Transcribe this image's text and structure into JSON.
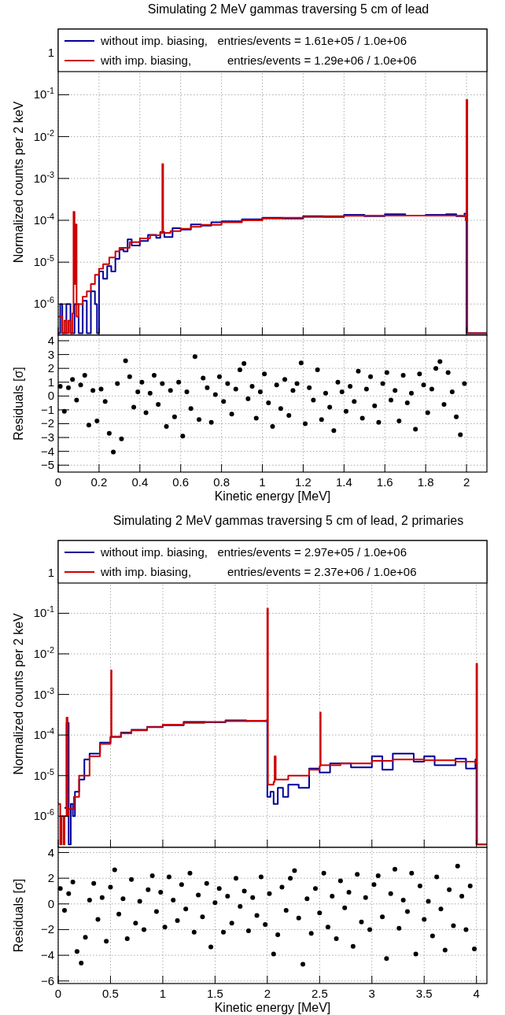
{
  "chart_data": [
    {
      "type": "step",
      "title": "Simulating 2 MeV gammas traversing 5 cm of lead",
      "ylabel": "Normalized counts per 2 keV",
      "log": "y",
      "grid": true,
      "legend": "top",
      "tick_labels": "y",
      "xlim": [
        0,
        2.1
      ],
      "xticks": [
        0,
        0.2,
        0.4,
        0.6,
        0.8,
        1,
        1.2,
        1.4,
        1.6,
        1.8,
        2
      ],
      "ylim": [
        1.8e-07,
        3.7
      ],
      "yticks": [
        {
          "value": 1e-06,
          "label": "10$^{-6}$"
        },
        {
          "value": 1e-05,
          "label": "10$^{-5}$"
        },
        {
          "value": 0.0001,
          "label": "10$^{-4}$"
        },
        {
          "value": 0.001,
          "label": "10$^{-3}$"
        },
        {
          "value": 0.01,
          "label": "10$^{-2}$"
        },
        {
          "value": 0.1,
          "label": "10$^{-1}$"
        },
        1
      ],
      "series": [
        {
          "name": "without imp. biasing,   entries/events = 1.61e+05 / 1.0e+06",
          "color": "#000099",
          "x": [
            0,
            0.01,
            0.02,
            0.04,
            0.06,
            0.08,
            0.1,
            0.12,
            0.14,
            0.16,
            0.18,
            0.19,
            0.2,
            0.22,
            0.24,
            0.26,
            0.28,
            0.3,
            0.32,
            0.34,
            0.36,
            0.4,
            0.44,
            0.48,
            0.5,
            0.52,
            0.56,
            0.6,
            0.65,
            0.7,
            0.75,
            0.8,
            0.9,
            1.0,
            1.1,
            1.2,
            1.3,
            1.4,
            1.5,
            1.6,
            1.7,
            1.8,
            1.9,
            1.95,
            1.99,
            2.0,
            2.1
          ],
          "values": [
            2e-07,
            1e-06,
            2e-07,
            1e-06,
            2e-07,
            1e-06,
            2e-07,
            1.2e-06,
            2e-07,
            2e-06,
            1e-06,
            2e-07,
            6e-06,
            4e-06,
            8e-06,
            6e-06,
            1.2e-05,
            2e-05,
            1.8e-05,
            3.5e-05,
            2.5e-05,
            3.2e-05,
            4.5e-05,
            3.8e-05,
            5.2e-05,
            4e-05,
            6.5e-05,
            6e-05,
            8e-05,
            7.5e-05,
            9e-05,
            9.5e-05,
            0.000105,
            0.000115,
            0.00011,
            0.000125,
            0.00012,
            0.000135,
            0.000125,
            0.00014,
            0.00013,
            0.000135,
            0.00014,
            0.000125,
            0.000145,
            2e-07,
            2e-07
          ]
        },
        {
          "name": "with imp. biasing,           entries/events = 1.29e+06 / 1.0e+06",
          "color": "#cc0000",
          "x": [
            0,
            0.02,
            0.03,
            0.04,
            0.05,
            0.06,
            0.07,
            0.075,
            0.08,
            0.085,
            0.09,
            0.1,
            0.12,
            0.14,
            0.16,
            0.18,
            0.2,
            0.22,
            0.25,
            0.28,
            0.3,
            0.35,
            0.4,
            0.45,
            0.5,
            0.51,
            0.514,
            0.55,
            0.6,
            0.65,
            0.7,
            0.8,
            0.9,
            1.0,
            1.1,
            1.2,
            1.3,
            1.4,
            1.5,
            1.6,
            1.7,
            1.8,
            1.9,
            1.98,
            1.996,
            2.0,
            2.004,
            2.1
          ],
          "values": [
            5e-07,
            2e-07,
            4e-07,
            2e-07,
            4e-07,
            2e-07,
            6e-07,
            0.00016,
            3e-06,
            8e-05,
            5e-07,
            1e-06,
            1.5e-06,
            2e-06,
            3e-06,
            5e-06,
            7e-06,
            9e-06,
            1.3e-05,
            1.8e-05,
            2.2e-05,
            3e-05,
            3.7e-05,
            4.4e-05,
            5e-05,
            0.0022,
            5e-05,
            5.5e-05,
            6.3e-05,
            7e-05,
            7.8e-05,
            9e-05,
            0.0001,
            0.00011,
            0.000115,
            0.00012,
            0.000125,
            0.000128,
            0.00013,
            0.00013,
            0.00013,
            0.00013,
            0.00013,
            0.000125,
            0.0001,
            0.075,
            2e-07,
            2e-07
          ]
        }
      ]
    },
    {
      "type": "scatter",
      "xlabel": "Kinetic energy [MeV]",
      "ylabel": "Residuals [σ]",
      "grid": true,
      "marker": "circle",
      "xlim": [
        0,
        2.1
      ],
      "xticks": [
        0,
        0.2,
        0.4,
        0.6,
        0.8,
        1,
        1.2,
        1.4,
        1.6,
        1.8,
        2
      ],
      "ylim": [
        -5.5,
        4.4
      ],
      "yticks": [
        -5,
        -4,
        -3,
        -2,
        -1,
        0,
        1,
        2,
        3,
        4
      ],
      "series": [
        {
          "color": "#000000",
          "x": [
            0.01,
            0.03,
            0.05,
            0.07,
            0.09,
            0.11,
            0.13,
            0.15,
            0.17,
            0.19,
            0.21,
            0.23,
            0.25,
            0.27,
            0.29,
            0.31,
            0.33,
            0.35,
            0.37,
            0.39,
            0.41,
            0.43,
            0.45,
            0.47,
            0.49,
            0.51,
            0.53,
            0.55,
            0.57,
            0.59,
            0.61,
            0.63,
            0.65,
            0.67,
            0.69,
            0.71,
            0.73,
            0.75,
            0.77,
            0.79,
            0.81,
            0.83,
            0.85,
            0.87,
            0.89,
            0.91,
            0.93,
            0.95,
            0.97,
            0.99,
            1.01,
            1.03,
            1.05,
            1.07,
            1.09,
            1.11,
            1.13,
            1.15,
            1.17,
            1.19,
            1.21,
            1.23,
            1.25,
            1.27,
            1.29,
            1.31,
            1.33,
            1.35,
            1.37,
            1.39,
            1.41,
            1.43,
            1.45,
            1.47,
            1.49,
            1.51,
            1.53,
            1.55,
            1.57,
            1.59,
            1.61,
            1.63,
            1.65,
            1.67,
            1.69,
            1.71,
            1.73,
            1.75,
            1.77,
            1.79,
            1.81,
            1.83,
            1.85,
            1.87,
            1.89,
            1.91,
            1.93,
            1.95,
            1.97,
            1.99
          ],
          "values": [
            0.7,
            -1.1,
            0.6,
            1.2,
            -0.3,
            0.8,
            1.5,
            -2.1,
            0.4,
            -1.8,
            0.5,
            -0.4,
            -2.7,
            -4.05,
            0.9,
            -3.1,
            2.55,
            1.4,
            -0.8,
            0.3,
            1.0,
            -1.2,
            0.2,
            1.5,
            -0.6,
            0.9,
            -2.2,
            0.4,
            -1.5,
            1.0,
            -2.9,
            0.3,
            -0.9,
            2.85,
            -1.7,
            1.3,
            0.6,
            -1.9,
            0.1,
            1.4,
            -0.4,
            0.9,
            -1.3,
            0.5,
            1.9,
            2.35,
            -0.2,
            0.7,
            -1.6,
            0.3,
            1.6,
            -0.5,
            -2.2,
            0.8,
            -0.9,
            1.2,
            -1.4,
            0.4,
            0.9,
            2.4,
            -2.0,
            0.6,
            -0.3,
            1.9,
            -1.7,
            0.2,
            -0.8,
            -2.5,
            1.0,
            0.3,
            -1.1,
            0.7,
            -0.4,
            1.8,
            -1.6,
            0.5,
            1.4,
            -0.7,
            -1.9,
            0.9,
            1.7,
            -0.3,
            0.4,
            -1.8,
            1.5,
            -0.5,
            0.2,
            -2.4,
            1.6,
            0.8,
            -1.2,
            0.5,
            2.0,
            2.5,
            -0.6,
            1.7,
            0.3,
            -1.5,
            -2.8,
            0.9
          ]
        }
      ]
    },
    {
      "type": "step",
      "title": "Simulating 2 MeV gammas traversing 5 cm of lead, 2 primaries",
      "ylabel": "Normalized counts per 2 keV",
      "log": "y",
      "grid": true,
      "legend": "top",
      "tick_labels": "y",
      "xlim": [
        0,
        4.1
      ],
      "xticks": [
        0,
        0.5,
        1,
        1.5,
        2,
        2.5,
        3,
        3.5,
        4
      ],
      "ylim": [
        1.7e-07,
        6.2
      ],
      "yticks": [
        {
          "value": 1e-06,
          "label": "10$^{-6}$"
        },
        {
          "value": 1e-05,
          "label": "10$^{-5}$"
        },
        {
          "value": 0.0001,
          "label": "10$^{-4}$"
        },
        {
          "value": 0.001,
          "label": "10$^{-3}$"
        },
        {
          "value": 0.01,
          "label": "10$^{-2}$"
        },
        {
          "value": 0.1,
          "label": "10$^{-1}$"
        },
        1
      ],
      "series": [
        {
          "name": "without imp. biasing,   entries/events = 2.97e+05 / 1.0e+06",
          "color": "#000099",
          "x": [
            0.06,
            0.08,
            0.1,
            0.12,
            0.14,
            0.16,
            0.2,
            0.25,
            0.3,
            0.4,
            0.5,
            0.6,
            0.7,
            0.85,
            1.0,
            1.2,
            1.4,
            1.6,
            1.8,
            1.99,
            2.0,
            2.03,
            2.06,
            2.1,
            2.15,
            2.2,
            2.3,
            2.4,
            2.5,
            2.6,
            2.8,
            3.0,
            3.1,
            3.2,
            3.4,
            3.5,
            3.6,
            3.8,
            3.9,
            3.99,
            4.0,
            4.1
          ],
          "values": [
            1.6e-06,
            0.0002,
            2e-07,
            2e-06,
            1e-06,
            4e-06,
            8e-06,
            2.5e-05,
            3.5e-05,
            6.5e-05,
            9e-05,
            0.000115,
            0.000135,
            0.00016,
            0.000175,
            0.00021,
            0.000205,
            0.00023,
            0.00022,
            0.00023,
            3e-06,
            4e-06,
            2e-06,
            5e-06,
            3e-06,
            6e-06,
            5e-06,
            1.5e-05,
            1.2e-05,
            2e-05,
            1.6e-05,
            3e-05,
            1.4e-05,
            3.5e-05,
            2.2e-05,
            3e-05,
            1.8e-05,
            2.6e-05,
            1.5e-05,
            2.5e-05,
            2e-07,
            2e-07
          ]
        },
        {
          "name": "with imp. biasing,           entries/events = 2.37e+06 / 1.0e+06",
          "color": "#cc0000",
          "x": [
            0,
            0.02,
            0.03,
            0.05,
            0.06,
            0.08,
            0.09,
            0.1,
            0.15,
            0.2,
            0.3,
            0.4,
            0.5,
            0.506,
            0.51,
            0.6,
            0.7,
            0.85,
            1.0,
            1.2,
            1.4,
            1.6,
            1.8,
            1.99,
            2.0,
            2.006,
            2.06,
            2.07,
            2.08,
            2.2,
            2.4,
            2.5,
            2.506,
            2.51,
            2.7,
            3.0,
            3.2,
            3.5,
            3.8,
            3.99,
            4.0,
            4.006,
            4.1
          ],
          "values": [
            2e-06,
            2e-07,
            1e-06,
            2e-07,
            1e-06,
            0.00027,
            1e-06,
            1.5e-06,
            3e-06,
            1e-05,
            3e-05,
            6e-05,
            8.5e-05,
            0.0039,
            9e-05,
            0.00011,
            0.00013,
            0.000155,
            0.00018,
            0.0002,
            0.00021,
            0.00022,
            0.000225,
            0.00022,
            0.13,
            6e-06,
            7e-06,
            3e-05,
            8e-06,
            1e-05,
            1.4e-05,
            1.7e-05,
            0.00036,
            1.8e-05,
            2e-05,
            2.3e-05,
            2.5e-05,
            2.4e-05,
            2.2e-05,
            2e-05,
            0.0057,
            2e-07,
            2e-07
          ]
        }
      ]
    },
    {
      "type": "scatter",
      "xlabel": "Kinetic energy [MeV]",
      "ylabel": "Residuals [σ]",
      "grid": true,
      "marker": "circle",
      "xlim": [
        0,
        4.1
      ],
      "xticks": [
        0,
        0.5,
        1,
        1.5,
        2,
        2.5,
        3,
        3.5,
        4
      ],
      "ylim": [
        -6.2,
        4.4
      ],
      "yticks": [
        -6,
        -4,
        -2,
        0,
        2,
        4
      ],
      "series": [
        {
          "color": "#000000",
          "x": [
            0.02,
            0.06,
            0.1,
            0.14,
            0.18,
            0.22,
            0.26,
            0.3,
            0.34,
            0.38,
            0.42,
            0.46,
            0.5,
            0.54,
            0.58,
            0.62,
            0.66,
            0.7,
            0.74,
            0.78,
            0.82,
            0.86,
            0.9,
            0.94,
            0.98,
            1.02,
            1.06,
            1.1,
            1.14,
            1.18,
            1.22,
            1.26,
            1.3,
            1.34,
            1.38,
            1.42,
            1.46,
            1.5,
            1.54,
            1.58,
            1.62,
            1.66,
            1.7,
            1.74,
            1.78,
            1.82,
            1.86,
            1.9,
            1.94,
            1.98,
            2.02,
            2.06,
            2.1,
            2.14,
            2.18,
            2.22,
            2.26,
            2.3,
            2.34,
            2.38,
            2.42,
            2.46,
            2.5,
            2.54,
            2.58,
            2.62,
            2.66,
            2.7,
            2.74,
            2.78,
            2.82,
            2.86,
            2.9,
            2.94,
            2.98,
            3.02,
            3.06,
            3.1,
            3.14,
            3.18,
            3.22,
            3.26,
            3.3,
            3.34,
            3.38,
            3.42,
            3.46,
            3.5,
            3.54,
            3.58,
            3.62,
            3.66,
            3.7,
            3.74,
            3.78,
            3.82,
            3.86,
            3.9,
            3.94,
            3.98
          ],
          "values": [
            1.2,
            -0.5,
            0.8,
            1.7,
            -3.7,
            -4.6,
            -2.6,
            0.3,
            1.6,
            -1.2,
            0.5,
            -2.9,
            1.3,
            2.65,
            -0.8,
            0.4,
            -2.7,
            1.9,
            -1.5,
            0.2,
            -2.0,
            1.1,
            2.2,
            -0.6,
            0.9,
            -1.8,
            2.1,
            0.3,
            -1.3,
            1.5,
            -0.4,
            2.4,
            -2.2,
            0.7,
            -1.0,
            1.6,
            -3.35,
            0.1,
            1.2,
            -2.2,
            0.6,
            -1.5,
            2.0,
            -0.2,
            1.0,
            -2.1,
            0.5,
            -0.9,
            2.1,
            -1.6,
            0.8,
            -3.9,
            -2.4,
            1.3,
            -0.5,
            2.0,
            2.6,
            -1.1,
            -4.7,
            0.4,
            -2.3,
            1.2,
            -0.7,
            2.4,
            -1.8,
            0.6,
            -2.7,
            1.8,
            -0.3,
            0.9,
            -3.3,
            2.3,
            -1.4,
            0.5,
            -2.0,
            1.5,
            2.2,
            -1.0,
            -4.25,
            0.8,
            2.7,
            -1.9,
            0.3,
            -0.6,
            2.4,
            -3.9,
            1.4,
            -1.2,
            0.2,
            -2.5,
            2.1,
            -0.4,
            -3.6,
            1.1,
            -1.7,
            2.95,
            0.6,
            -2.0,
            1.4,
            -3.5
          ]
        }
      ]
    }
  ]
}
